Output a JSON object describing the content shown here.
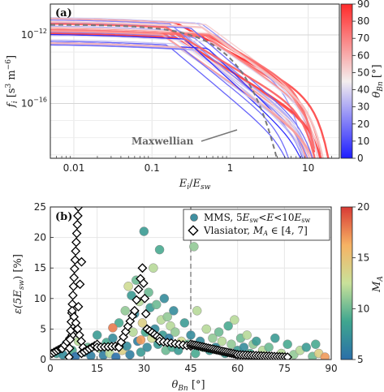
{
  "chart_data": [
    {
      "type": "line",
      "panel_label": "(a)",
      "xlabel": "E_i / E_sw",
      "ylabel": "f_i [s^3 m^-6]",
      "x_scale": "log",
      "y_scale": "log",
      "xlim": [
        0.005,
        25
      ],
      "ylim_log10": [
        -19.2,
        -10.2
      ],
      "xticks": [
        {
          "v": 0.01,
          "t": "0.01"
        },
        {
          "v": 0.1,
          "t": "0.1"
        },
        {
          "v": 1,
          "t": "1"
        },
        {
          "v": 10,
          "t": "10"
        }
      ],
      "yticks": [
        {
          "v": -12,
          "t": "10^-12"
        },
        {
          "v": -16,
          "t": "10^-16"
        }
      ],
      "grid": true,
      "annotation": "Maxwellian",
      "maxwellian": {
        "log10_f_at_low_E": -11.4,
        "kT_over_Esw": 0.22
      },
      "colorbar": {
        "label": "θ_Bn [°]",
        "min": 0,
        "max": 90,
        "ticks": [
          0,
          10,
          20,
          30,
          40,
          50,
          60,
          70,
          80,
          90
        ]
      },
      "series_model": {
        "curves": 34,
        "theta_range": [
          0,
          90
        ],
        "log10_f_low_E": [
          -12.6,
          -10.9
        ]
      }
    },
    {
      "type": "scatter",
      "panel_label": "(b)",
      "xlabel": "θ_Bn [°]",
      "ylabel": "ε(5E_sw) [%]",
      "xlim": [
        0,
        90
      ],
      "ylim": [
        0,
        25
      ],
      "xticks": [
        0,
        15,
        30,
        45,
        60,
        75,
        90
      ],
      "yticks": [
        0,
        5,
        10,
        15,
        20,
        25
      ],
      "vline_x": 45,
      "grid": true,
      "legend": {
        "position": "top-right",
        "entries": [
          "MMS, 5E_sw < E < 10E_sw",
          "Vlasiator, M_A ∈ [4, 7]"
        ]
      },
      "colorbar": {
        "label": "M_A",
        "min": 5,
        "max": 20,
        "ticks": [
          5,
          10,
          15,
          20
        ]
      },
      "mms": [
        {
          "x": 2,
          "y": 1.0,
          "c": 8
        },
        {
          "x": 4,
          "y": 0.8,
          "c": 7
        },
        {
          "x": 5,
          "y": 2.5,
          "c": 6
        },
        {
          "x": 7,
          "y": 1.5,
          "c": 9
        },
        {
          "x": 8,
          "y": 0.5,
          "c": 5
        },
        {
          "x": 9,
          "y": 3.0,
          "c": 12
        },
        {
          "x": 11,
          "y": 1.2,
          "c": 7
        },
        {
          "x": 12,
          "y": 2.0,
          "c": 10
        },
        {
          "x": 13,
          "y": 0.6,
          "c": 6
        },
        {
          "x": 15,
          "y": 4.0,
          "c": 8
        },
        {
          "x": 16,
          "y": 1.8,
          "c": 11
        },
        {
          "x": 17,
          "y": 0.7,
          "c": 6
        },
        {
          "x": 18,
          "y": 2.8,
          "c": 9
        },
        {
          "x": 19,
          "y": 1.0,
          "c": 12
        },
        {
          "x": 20,
          "y": 3.5,
          "c": 7
        },
        {
          "x": 21,
          "y": 0.4,
          "c": 5
        },
        {
          "x": 22,
          "y": 6.0,
          "c": 9
        },
        {
          "x": 23,
          "y": 1.5,
          "c": 14
        },
        {
          "x": 24,
          "y": 8.0,
          "c": 11
        },
        {
          "x": 24.5,
          "y": 2.2,
          "c": 7
        },
        {
          "x": 25,
          "y": 12.0,
          "c": 13
        },
        {
          "x": 25.5,
          "y": 0.8,
          "c": 6
        },
        {
          "x": 26,
          "y": 10.5,
          "c": 8
        },
        {
          "x": 26.5,
          "y": 4.5,
          "c": 12
        },
        {
          "x": 27,
          "y": 7.5,
          "c": 7
        },
        {
          "x": 27.5,
          "y": 13.0,
          "c": 10
        },
        {
          "x": 28,
          "y": 3.0,
          "c": 6
        },
        {
          "x": 28.5,
          "y": 9.5,
          "c": 12
        },
        {
          "x": 29,
          "y": 1.2,
          "c": 8
        },
        {
          "x": 29.5,
          "y": 6.0,
          "c": 14
        },
        {
          "x": 30,
          "y": 21.0,
          "c": 8
        },
        {
          "x": 30.5,
          "y": 4.5,
          "c": 9
        },
        {
          "x": 31,
          "y": 2.0,
          "c": 7
        },
        {
          "x": 31.5,
          "y": 11.0,
          "c": 10
        },
        {
          "x": 32,
          "y": 8.5,
          "c": 8
        },
        {
          "x": 32.5,
          "y": 3.5,
          "c": 13
        },
        {
          "x": 33,
          "y": 15.0,
          "c": 12
        },
        {
          "x": 33.5,
          "y": 5.0,
          "c": 7
        },
        {
          "x": 34,
          "y": 9.0,
          "c": 10
        },
        {
          "x": 34.5,
          "y": 2.5,
          "c": 8
        },
        {
          "x": 35,
          "y": 18.0,
          "c": 9
        },
        {
          "x": 35.5,
          "y": 6.5,
          "c": 12
        },
        {
          "x": 36,
          "y": 4.0,
          "c": 8
        },
        {
          "x": 36.5,
          "y": 10.0,
          "c": 7
        },
        {
          "x": 37,
          "y": 1.5,
          "c": 10
        },
        {
          "x": 37.5,
          "y": 7.0,
          "c": 11
        },
        {
          "x": 38,
          "y": 3.5,
          "c": 6
        },
        {
          "x": 38.5,
          "y": 5.5,
          "c": 12
        },
        {
          "x": 39,
          "y": 2.0,
          "c": 9
        },
        {
          "x": 39.5,
          "y": 8.0,
          "c": 7
        },
        {
          "x": 40,
          "y": 4.5,
          "c": 11
        },
        {
          "x": 41,
          "y": 1.5,
          "c": 8
        },
        {
          "x": 42,
          "y": 3.0,
          "c": 13
        },
        {
          "x": 43,
          "y": 6.0,
          "c": 8
        },
        {
          "x": 44,
          "y": 2.5,
          "c": 10
        },
        {
          "x": 45,
          "y": 4.0,
          "c": 7
        },
        {
          "x": 46,
          "y": 18.5,
          "c": 11
        },
        {
          "x": 46.5,
          "y": 1.0,
          "c": 9
        },
        {
          "x": 47,
          "y": 8.0,
          "c": 12
        },
        {
          "x": 48,
          "y": 3.0,
          "c": 7
        },
        {
          "x": 49,
          "y": 2.0,
          "c": 10
        },
        {
          "x": 50,
          "y": 5.0,
          "c": 12
        },
        {
          "x": 51,
          "y": 1.5,
          "c": 8
        },
        {
          "x": 52,
          "y": 3.5,
          "c": 11
        },
        {
          "x": 53,
          "y": 2.0,
          "c": 7
        },
        {
          "x": 54,
          "y": 4.5,
          "c": 10
        },
        {
          "x": 55,
          "y": 3.0,
          "c": 12
        },
        {
          "x": 56,
          "y": 1.0,
          "c": 8
        },
        {
          "x": 57,
          "y": 5.5,
          "c": 9
        },
        {
          "x": 58,
          "y": 2.5,
          "c": 11
        },
        {
          "x": 59,
          "y": 6.5,
          "c": 12
        },
        {
          "x": 60,
          "y": 1.5,
          "c": 8
        },
        {
          "x": 61,
          "y": 3.5,
          "c": 10
        },
        {
          "x": 62,
          "y": 2.0,
          "c": 7
        },
        {
          "x": 63,
          "y": 4.0,
          "c": 12
        },
        {
          "x": 64,
          "y": 1.0,
          "c": 9
        },
        {
          "x": 65,
          "y": 2.5,
          "c": 11
        },
        {
          "x": 66,
          "y": 3.0,
          "c": 8
        },
        {
          "x": 68,
          "y": 1.5,
          "c": 12
        },
        {
          "x": 70,
          "y": 2.0,
          "c": 10
        },
        {
          "x": 72,
          "y": 3.5,
          "c": 8
        },
        {
          "x": 74,
          "y": 1.0,
          "c": 12
        },
        {
          "x": 76,
          "y": 2.5,
          "c": 9
        },
        {
          "x": 78,
          "y": 0.8,
          "c": 11
        },
        {
          "x": 80,
          "y": 1.5,
          "c": 12
        },
        {
          "x": 82,
          "y": 2.0,
          "c": 8
        },
        {
          "x": 84,
          "y": 0.5,
          "c": 10
        },
        {
          "x": 86,
          "y": 1.0,
          "c": 14
        },
        {
          "x": 88,
          "y": 0.4,
          "c": 17
        },
        {
          "x": 85,
          "y": 2.5,
          "c": 9
        },
        {
          "x": 20,
          "y": 5.2,
          "c": 18
        },
        {
          "x": 29,
          "y": 3.2,
          "c": 17
        }
      ],
      "vlasiator_segments": [
        {
          "from": [
            0.5,
            1.0
          ],
          "to": [
            4.0,
            2.0
          ],
          "n": 6
        },
        {
          "from": [
            3.8,
            1.8
          ],
          "to": [
            7.0,
            4.0
          ],
          "n": 5
        },
        {
          "from": [
            6.0,
            0.4
          ],
          "to": [
            9.0,
            25.0
          ],
          "n": 18
        },
        {
          "from": [
            8.5,
            5.0
          ],
          "to": [
            10.0,
            16.0
          ],
          "n": 4
        },
        {
          "from": [
            7.0,
            8.0
          ],
          "to": [
            10.5,
            2.0
          ],
          "n": 7
        },
        {
          "from": [
            10.0,
            1.0
          ],
          "to": [
            15.0,
            2.5
          ],
          "n": 7
        },
        {
          "from": [
            15.0,
            2.0
          ],
          "to": [
            22.0,
            2.2
          ],
          "n": 7
        },
        {
          "from": [
            22.0,
            2.0
          ],
          "to": [
            27.0,
            8.0
          ],
          "n": 8
        },
        {
          "from": [
            27.0,
            8.0
          ],
          "to": [
            29.5,
            15.0
          ],
          "n": 5
        },
        {
          "from": [
            29.5,
            15.0
          ],
          "to": [
            31.0,
            5.0
          ],
          "n": 5
        },
        {
          "from": [
            31.0,
            5.0
          ],
          "to": [
            35.0,
            3.5
          ],
          "n": 6
        },
        {
          "from": [
            35.0,
            3.0
          ],
          "to": [
            45.0,
            2.2
          ],
          "n": 9
        },
        {
          "from": [
            45.0,
            2.5
          ],
          "to": [
            60.0,
            0.8
          ],
          "n": 25
        },
        {
          "from": [
            60.0,
            0.8
          ],
          "to": [
            76.0,
            0.4
          ],
          "n": 20
        }
      ]
    }
  ]
}
